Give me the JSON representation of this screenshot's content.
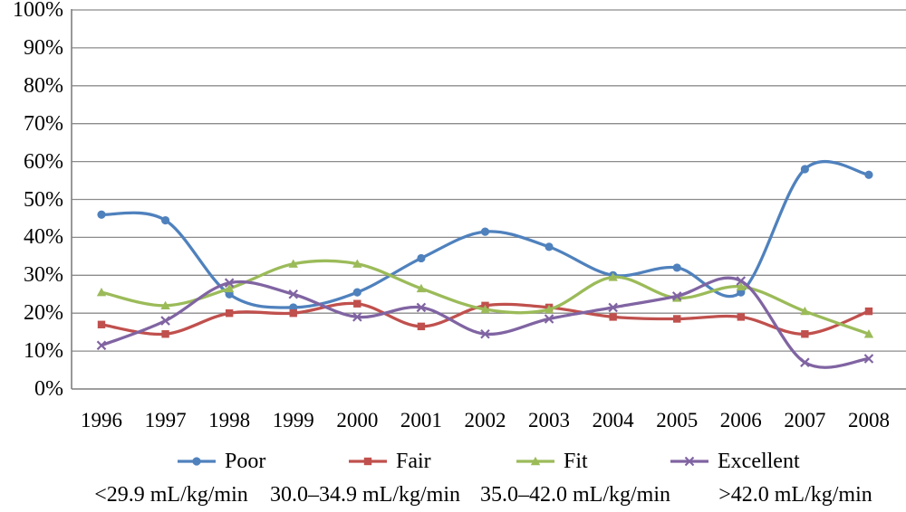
{
  "chart_data": {
    "type": "line",
    "title": "",
    "xlabel": "",
    "ylabel": "",
    "ylim": [
      0,
      100
    ],
    "y_tick_labels": [
      "0%",
      "10%",
      "20%",
      "30%",
      "40%",
      "50%",
      "60%",
      "70%",
      "80%",
      "90%",
      "100%"
    ],
    "grid": "horizontal",
    "smoothed": true,
    "legend_position": "bottom",
    "categories": [
      "1996",
      "1997",
      "1998",
      "1999",
      "2000",
      "2001",
      "2002",
      "2003",
      "2004",
      "2005",
      "2006",
      "2007",
      "2008"
    ],
    "series": [
      {
        "name": "Poor",
        "color": "#4F81BD",
        "marker": "circle",
        "values": [
          46,
          44.5,
          25,
          21.5,
          25.5,
          34.5,
          41.5,
          37.5,
          30,
          32,
          25.5,
          58,
          56.5
        ]
      },
      {
        "name": "Fair",
        "color": "#C0504D",
        "marker": "square",
        "values": [
          17,
          14.5,
          20,
          20,
          22.5,
          16.5,
          22,
          21.5,
          19,
          18.5,
          19,
          14.5,
          20.5
        ]
      },
      {
        "name": "Fit",
        "color": "#9BBB59",
        "marker": "triangle",
        "values": [
          25.5,
          22,
          26.5,
          33,
          33,
          26.5,
          21,
          21,
          29.5,
          24,
          27,
          20.5,
          14.5
        ]
      },
      {
        "name": "Excellent",
        "color": "#8064A2",
        "marker": "x",
        "values": [
          11.5,
          18,
          28,
          25,
          19,
          21.5,
          14.5,
          18.5,
          21.5,
          24.5,
          28.5,
          7,
          8
        ]
      }
    ],
    "grid_color": "#8C8C8C",
    "axis_color": "#7F7F7F",
    "annotations": [
      "<29.9 mL/kg/min",
      "30.0–34.9 mL/kg/min",
      "35.0–42.0 mL/kg/min",
      ">42.0 mL/kg/min"
    ]
  }
}
